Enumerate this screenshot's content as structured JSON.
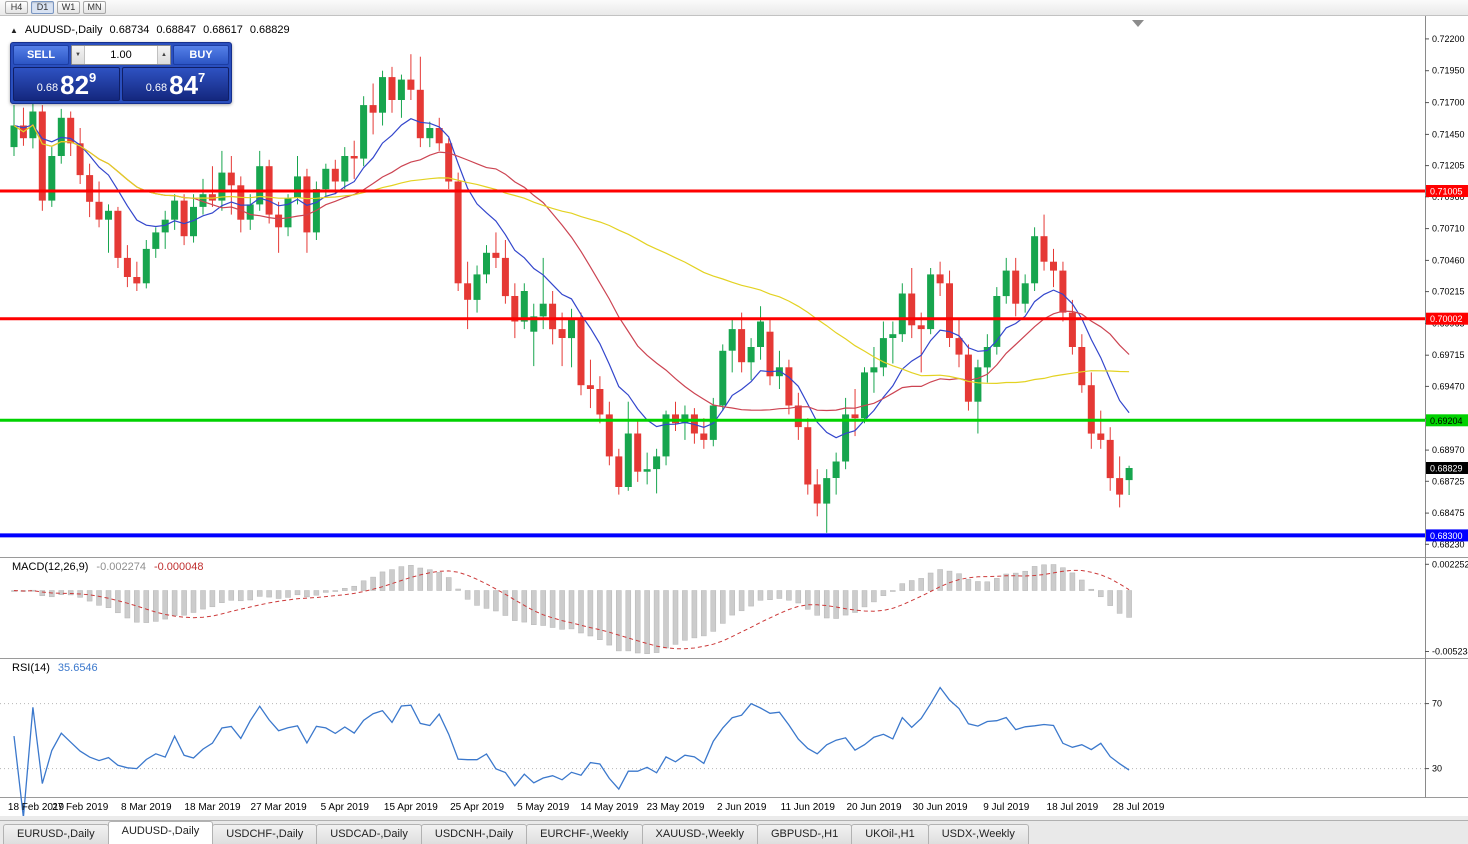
{
  "toolbar": {
    "timeframes": [
      {
        "label": "H4",
        "active": false
      },
      {
        "label": "D1",
        "active": true
      },
      {
        "label": "W1",
        "active": false
      },
      {
        "label": "MN",
        "active": false
      }
    ]
  },
  "icons": {
    "direction_marker": "▲",
    "spinner_down": "▼",
    "spinner_up": "▲"
  },
  "chart": {
    "info": {
      "symbol": "AUDUSD-,Daily",
      "open": "0.68734",
      "high": "0.68847",
      "low": "0.68617",
      "close": "0.68829"
    },
    "trade_panel": {
      "sell_label": "SELL",
      "buy_label": "BUY",
      "volume": "1.00",
      "sell_price": {
        "small": "0.68",
        "big": "82",
        "sup": "9"
      },
      "buy_price": {
        "small": "0.68",
        "big": "84",
        "sup": "7"
      }
    },
    "y_axis": {
      "max": 0.7238,
      "min": 0.6813,
      "ticks": [
        "0.72200",
        "0.71950",
        "0.71700",
        "0.71450",
        "0.71205",
        "0.70960",
        "0.70710",
        "0.70460",
        "0.70215",
        "0.69965",
        "0.69715",
        "0.69470",
        "0.69220",
        "0.68970",
        "0.68725",
        "0.68475",
        "0.68230"
      ]
    },
    "hlines": [
      {
        "label": "0.71005",
        "value": 0.71005,
        "color": "#FF0000",
        "text_color": "#FFFFFF",
        "width": 3
      },
      {
        "label": "0.70002",
        "value": 0.70002,
        "color": "#FF0000",
        "text_color": "#FFFFFF",
        "width": 3
      },
      {
        "label": "0.69204",
        "value": 0.69204,
        "color": "#00D200",
        "text_color": "#000000",
        "width": 3
      },
      {
        "label": "0.68300",
        "value": 0.683,
        "color": "#0000FF",
        "text_color": "#FFFFFF",
        "width": 4
      }
    ],
    "price_marker": {
      "label": "0.68829",
      "value": 0.68829,
      "bg": "#000000",
      "text_color": "#FFFFFF"
    }
  },
  "macd": {
    "title": "MACD(12,26,9)",
    "value_main": "-0.002274",
    "value_signal": "-0.000048",
    "axis_labels": [
      "0.002252",
      "-0.005234"
    ],
    "scale": {
      "max": 0.00245,
      "min": -0.00545
    },
    "params": {
      "fast": 12,
      "slow": 26,
      "signal": 9
    }
  },
  "rsi": {
    "title": "RSI(14)",
    "value": "35.6546",
    "period": 14,
    "levels": [
      "70",
      "30"
    ],
    "scale": {
      "max": 95,
      "min": 15
    }
  },
  "x_axis": {
    "labels": [
      "18 Feb 2019",
      "27 Feb 2019",
      "8 Mar 2019",
      "18 Mar 2019",
      "27 Mar 2019",
      "5 Apr 2019",
      "15 Apr 2019",
      "25 Apr 2019",
      "5 May 2019",
      "14 May 2019",
      "23 May 2019",
      "2 Jun 2019",
      "11 Jun 2019",
      "20 Jun 2019",
      "30 Jun 2019",
      "9 Jul 2019",
      "18 Jul 2019",
      "28 Jul 2019"
    ]
  },
  "tabs": [
    {
      "label": "EURUSD-,Daily",
      "active": false
    },
    {
      "label": "AUDUSD-,Daily",
      "active": true
    },
    {
      "label": "USDCHF-,Daily",
      "active": false
    },
    {
      "label": "USDCAD-,Daily",
      "active": false
    },
    {
      "label": "USDCNH-,Daily",
      "active": false
    },
    {
      "label": "EURCHF-,Weekly",
      "active": false
    },
    {
      "label": "XAUUSD-,Weekly",
      "active": false
    },
    {
      "label": "GBPUSD-,H1",
      "active": false
    },
    {
      "label": "UKOil-,H1",
      "active": false
    },
    {
      "label": "USDX-,Weekly",
      "active": false
    }
  ],
  "colors": {
    "bull": "#17a54e",
    "bear": "#e53935",
    "ma_fast": "#3346cc",
    "ma_mid": "#cc4452",
    "ma_slow": "#e3d222",
    "macd_hist": "#cccccc",
    "macd_hist_border": "#b5b5b5",
    "macd_signal": "#cc3a3a",
    "rsi_line": "#3b78cc",
    "rsi_level": "#b6b6b6",
    "axis_line": "#8a8a8a",
    "tick_text": "#000000"
  },
  "chart_data": {
    "type": "candlestick",
    "symbol": "AUDUSD",
    "timeframe": "Daily",
    "overlays": [
      {
        "name": "ma-fast",
        "method": "ema",
        "period": 10,
        "color_key": "ma_fast"
      },
      {
        "name": "ma-mid",
        "method": "sma",
        "period": 20,
        "color_key": "ma_mid"
      },
      {
        "name": "ma-slow",
        "method": "sma",
        "period": 50,
        "color_key": "ma_slow"
      }
    ],
    "indicators": [
      {
        "type": "macd",
        "params": [
          12,
          26,
          9
        ]
      },
      {
        "type": "rsi",
        "params": [
          14
        ]
      }
    ],
    "candles": [
      [
        0.7135,
        0.7168,
        0.7128,
        0.7152
      ],
      [
        0.7152,
        0.7166,
        0.7136,
        0.7142
      ],
      [
        0.7142,
        0.717,
        0.7134,
        0.7163
      ],
      [
        0.7163,
        0.7168,
        0.7085,
        0.7093
      ],
      [
        0.7093,
        0.7135,
        0.7088,
        0.7128
      ],
      [
        0.7128,
        0.7165,
        0.7122,
        0.7158
      ],
      [
        0.7158,
        0.7163,
        0.7128,
        0.7138
      ],
      [
        0.7138,
        0.715,
        0.7106,
        0.7113
      ],
      [
        0.7113,
        0.7122,
        0.708,
        0.7092
      ],
      [
        0.7092,
        0.7108,
        0.7072,
        0.7078
      ],
      [
        0.7078,
        0.709,
        0.7052,
        0.7085
      ],
      [
        0.7085,
        0.7088,
        0.704,
        0.7048
      ],
      [
        0.7048,
        0.7058,
        0.7025,
        0.7033
      ],
      [
        0.7033,
        0.7045,
        0.7022,
        0.7028
      ],
      [
        0.7028,
        0.7062,
        0.7024,
        0.7055
      ],
      [
        0.7055,
        0.7072,
        0.7048,
        0.7068
      ],
      [
        0.7068,
        0.7085,
        0.7055,
        0.7078
      ],
      [
        0.7078,
        0.7098,
        0.707,
        0.7093
      ],
      [
        0.7093,
        0.7098,
        0.7058,
        0.7065
      ],
      [
        0.7065,
        0.7098,
        0.706,
        0.7088
      ],
      [
        0.7088,
        0.711,
        0.7082,
        0.7098
      ],
      [
        0.7098,
        0.712,
        0.7088,
        0.7093
      ],
      [
        0.7093,
        0.7132,
        0.7085,
        0.7115
      ],
      [
        0.7115,
        0.7128,
        0.7082,
        0.7105
      ],
      [
        0.7105,
        0.7112,
        0.7068,
        0.7078
      ],
      [
        0.7078,
        0.7098,
        0.707,
        0.709
      ],
      [
        0.709,
        0.7132,
        0.7085,
        0.712
      ],
      [
        0.712,
        0.7125,
        0.7075,
        0.7082
      ],
      [
        0.7082,
        0.7092,
        0.7052,
        0.7072
      ],
      [
        0.7072,
        0.7098,
        0.7065,
        0.7095
      ],
      [
        0.7095,
        0.7128,
        0.709,
        0.7112
      ],
      [
        0.7112,
        0.7118,
        0.7052,
        0.7068
      ],
      [
        0.7068,
        0.7108,
        0.7062,
        0.7102
      ],
      [
        0.7102,
        0.7122,
        0.7095,
        0.7118
      ],
      [
        0.7118,
        0.7125,
        0.7098,
        0.7108
      ],
      [
        0.7108,
        0.7135,
        0.7102,
        0.7128
      ],
      [
        0.7128,
        0.714,
        0.711,
        0.7126
      ],
      [
        0.7126,
        0.7175,
        0.712,
        0.7168
      ],
      [
        0.7168,
        0.7185,
        0.7145,
        0.7162
      ],
      [
        0.7162,
        0.7195,
        0.7152,
        0.719
      ],
      [
        0.719,
        0.7198,
        0.7162,
        0.7172
      ],
      [
        0.7172,
        0.7192,
        0.7158,
        0.7188
      ],
      [
        0.7188,
        0.7208,
        0.7172,
        0.718
      ],
      [
        0.718,
        0.7206,
        0.7135,
        0.7142
      ],
      [
        0.7142,
        0.7155,
        0.7135,
        0.715
      ],
      [
        0.715,
        0.7158,
        0.7132,
        0.7138
      ],
      [
        0.7138,
        0.7142,
        0.7102,
        0.7108
      ],
      [
        0.7108,
        0.7115,
        0.7022,
        0.7028
      ],
      [
        0.7028,
        0.7045,
        0.6992,
        0.7015
      ],
      [
        0.7015,
        0.7042,
        0.7005,
        0.7035
      ],
      [
        0.7035,
        0.7058,
        0.7028,
        0.7052
      ],
      [
        0.7052,
        0.7068,
        0.704,
        0.7048
      ],
      [
        0.7048,
        0.7062,
        0.7012,
        0.7018
      ],
      [
        0.7018,
        0.7028,
        0.6985,
        0.6998
      ],
      [
        0.6998,
        0.7028,
        0.6992,
        0.7022
      ],
      [
        0.699,
        0.7012,
        0.6963,
        0.7002
      ],
      [
        0.7002,
        0.7048,
        0.6992,
        0.7012
      ],
      [
        0.7012,
        0.7022,
        0.698,
        0.6992
      ],
      [
        0.6992,
        0.7005,
        0.6963,
        0.6985
      ],
      [
        0.6985,
        0.7008,
        0.6962,
        0.7
      ],
      [
        0.7,
        0.7005,
        0.694,
        0.6948
      ],
      [
        0.6948,
        0.6968,
        0.693,
        0.6945
      ],
      [
        0.6945,
        0.6955,
        0.6918,
        0.6925
      ],
      [
        0.6925,
        0.6935,
        0.6885,
        0.6892
      ],
      [
        0.6892,
        0.6898,
        0.6862,
        0.6868
      ],
      [
        0.6868,
        0.6935,
        0.6865,
        0.691
      ],
      [
        0.691,
        0.692,
        0.6872,
        0.688
      ],
      [
        0.688,
        0.6895,
        0.687,
        0.6882
      ],
      [
        0.6882,
        0.6898,
        0.6863,
        0.6892
      ],
      [
        0.6892,
        0.6928,
        0.6885,
        0.6925
      ],
      [
        0.6925,
        0.6935,
        0.6912,
        0.6918
      ],
      [
        0.6918,
        0.6932,
        0.6905,
        0.6925
      ],
      [
        0.6925,
        0.693,
        0.6902,
        0.691
      ],
      [
        0.691,
        0.6922,
        0.6898,
        0.6905
      ],
      [
        0.6905,
        0.6938,
        0.69,
        0.6932
      ],
      [
        0.6932,
        0.698,
        0.6928,
        0.6975
      ],
      [
        0.6975,
        0.7,
        0.6958,
        0.6992
      ],
      [
        0.6992,
        0.7005,
        0.6958,
        0.6966
      ],
      [
        0.6966,
        0.6985,
        0.6952,
        0.6978
      ],
      [
        0.6978,
        0.701,
        0.6968,
        0.6998
      ],
      [
        0.699,
        0.7,
        0.6948,
        0.6955
      ],
      [
        0.6955,
        0.6975,
        0.6945,
        0.6962
      ],
      [
        0.6962,
        0.6968,
        0.6925,
        0.6932
      ],
      [
        0.6932,
        0.6942,
        0.6905,
        0.6915
      ],
      [
        0.6915,
        0.6922,
        0.6862,
        0.687
      ],
      [
        0.687,
        0.6882,
        0.6845,
        0.6855
      ],
      [
        0.6855,
        0.6882,
        0.6832,
        0.6875
      ],
      [
        0.6875,
        0.6895,
        0.6862,
        0.6888
      ],
      [
        0.6888,
        0.6938,
        0.6882,
        0.6925
      ],
      [
        0.6925,
        0.6945,
        0.6908,
        0.6922
      ],
      [
        0.6922,
        0.6962,
        0.6918,
        0.6958
      ],
      [
        0.6958,
        0.6978,
        0.6942,
        0.6962
      ],
      [
        0.6962,
        0.6998,
        0.6955,
        0.6985
      ],
      [
        0.6985,
        0.6998,
        0.6965,
        0.6988
      ],
      [
        0.6988,
        0.7028,
        0.6982,
        0.702
      ],
      [
        0.702,
        0.704,
        0.6985,
        0.6995
      ],
      [
        0.6995,
        0.7005,
        0.6958,
        0.6992
      ],
      [
        0.6992,
        0.704,
        0.6988,
        0.7035
      ],
      [
        0.7035,
        0.7045,
        0.7018,
        0.7028
      ],
      [
        0.7028,
        0.7038,
        0.6978,
        0.6985
      ],
      [
        0.6985,
        0.7,
        0.6962,
        0.6972
      ],
      [
        0.6972,
        0.698,
        0.6928,
        0.6935
      ],
      [
        0.6935,
        0.6968,
        0.691,
        0.6962
      ],
      [
        0.6962,
        0.6988,
        0.695,
        0.6978
      ],
      [
        0.6978,
        0.7025,
        0.6972,
        0.7018
      ],
      [
        0.7018,
        0.7048,
        0.7012,
        0.7038
      ],
      [
        0.7038,
        0.7048,
        0.7002,
        0.7012
      ],
      [
        0.7012,
        0.7035,
        0.7005,
        0.7028
      ],
      [
        0.7028,
        0.7072,
        0.7022,
        0.7065
      ],
      [
        0.7065,
        0.7082,
        0.7038,
        0.7045
      ],
      [
        0.7045,
        0.7055,
        0.7025,
        0.7038
      ],
      [
        0.7038,
        0.7045,
        0.6998,
        0.7005
      ],
      [
        0.7005,
        0.7015,
        0.6972,
        0.6978
      ],
      [
        0.6978,
        0.6988,
        0.6942,
        0.6948
      ],
      [
        0.6948,
        0.6958,
        0.6898,
        0.691
      ],
      [
        0.691,
        0.6928,
        0.6898,
        0.6905
      ],
      [
        0.6905,
        0.6915,
        0.6865,
        0.6875
      ],
      [
        0.6875,
        0.6892,
        0.6852,
        0.6862
      ],
      [
        0.68734,
        0.68847,
        0.68617,
        0.68829
      ]
    ]
  }
}
